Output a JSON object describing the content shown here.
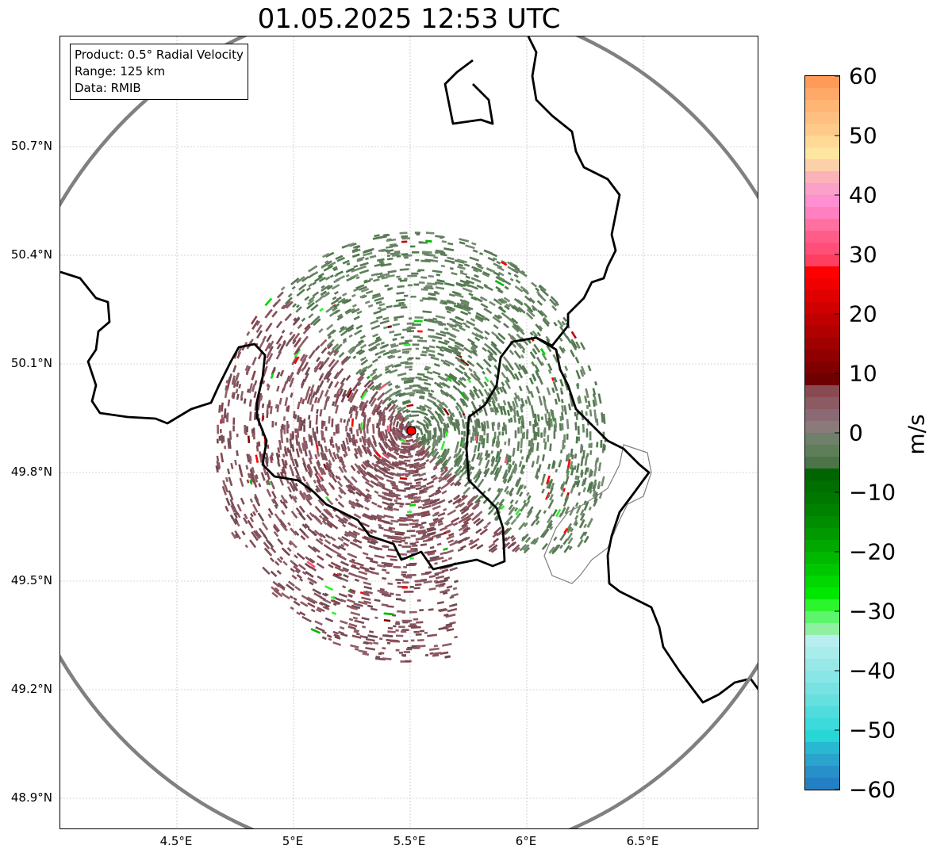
{
  "title": "01.05.2025 12:53 UTC",
  "info": {
    "product": "Product: 0.5° Radial Velocity",
    "range": "Range: 125 km",
    "source": "Data: RMIB"
  },
  "map": {
    "lon_range": [
      4.0,
      7.0
    ],
    "lat_range": [
      48.8,
      50.98
    ],
    "x_ticks": [
      {
        "value": 4.5,
        "label": "4.5°E"
      },
      {
        "value": 5.0,
        "label": "5°E"
      },
      {
        "value": 5.5,
        "label": "5.5°E"
      },
      {
        "value": 6.0,
        "label": "6°E"
      },
      {
        "value": 6.5,
        "label": "6.5°E"
      }
    ],
    "y_ticks": [
      {
        "value": 50.7,
        "label": "50.7°N"
      },
      {
        "value": 50.4,
        "label": "50.4°N"
      },
      {
        "value": 50.1,
        "label": "50.1°N"
      },
      {
        "value": 49.8,
        "label": "49.8°N"
      },
      {
        "value": 49.5,
        "label": "49.5°N"
      },
      {
        "value": 49.2,
        "label": "49.2°N"
      },
      {
        "value": 48.9,
        "label": "48.9°N"
      }
    ],
    "grid": true,
    "radar_site": {
      "lon": 5.505,
      "lat": 49.915
    },
    "range_ring_km": 125,
    "colors": {
      "border": "#000000",
      "minor_border": "#808080",
      "ring": "#808080",
      "site": "#ff0000",
      "approach": "#5e7e5a",
      "recede": "#8a5560"
    }
  },
  "colorbar": {
    "label": "m/s",
    "min": -60,
    "max": 60,
    "ticks": [
      {
        "value": 60,
        "label": "60"
      },
      {
        "value": 50,
        "label": "50"
      },
      {
        "value": 40,
        "label": "40"
      },
      {
        "value": 30,
        "label": "30"
      },
      {
        "value": 20,
        "label": "20"
      },
      {
        "value": 10,
        "label": "10"
      },
      {
        "value": 0,
        "label": "0"
      },
      {
        "value": -10,
        "label": "−10"
      },
      {
        "value": -20,
        "label": "−20"
      },
      {
        "value": -30,
        "label": "−30"
      },
      {
        "value": -40,
        "label": "−40"
      },
      {
        "value": -50,
        "label": "−50"
      },
      {
        "value": -60,
        "label": "−60"
      }
    ],
    "segments": [
      {
        "from": 58,
        "to": 60,
        "color": "#ff9a58"
      },
      {
        "from": 56,
        "to": 58,
        "color": "#ffa868"
      },
      {
        "from": 54,
        "to": 56,
        "color": "#ffb574"
      },
      {
        "from": 52,
        "to": 54,
        "color": "#ffbf80"
      },
      {
        "from": 50,
        "to": 52,
        "color": "#ffc98a"
      },
      {
        "from": 48,
        "to": 50,
        "color": "#ffd995"
      },
      {
        "from": 46,
        "to": 48,
        "color": "#ffe6a0"
      },
      {
        "from": 44,
        "to": 46,
        "color": "#fcd0a8"
      },
      {
        "from": 42,
        "to": 44,
        "color": "#fbb3b9"
      },
      {
        "from": 40,
        "to": 42,
        "color": "#fba0c8"
      },
      {
        "from": 38,
        "to": 40,
        "color": "#ff8fd0"
      },
      {
        "from": 36,
        "to": 38,
        "color": "#ff7fc0"
      },
      {
        "from": 34,
        "to": 36,
        "color": "#ff6fa0"
      },
      {
        "from": 32,
        "to": 34,
        "color": "#ff5c8a"
      },
      {
        "from": 30,
        "to": 32,
        "color": "#ff4f78"
      },
      {
        "from": 28,
        "to": 30,
        "color": "#ff3f60"
      },
      {
        "from": 26,
        "to": 28,
        "color": "#ff0000"
      },
      {
        "from": 24,
        "to": 26,
        "color": "#f00000"
      },
      {
        "from": 22,
        "to": 24,
        "color": "#e00000"
      },
      {
        "from": 20,
        "to": 22,
        "color": "#d00000"
      },
      {
        "from": 18,
        "to": 20,
        "color": "#c00000"
      },
      {
        "from": 16,
        "to": 18,
        "color": "#b00000"
      },
      {
        "from": 14,
        "to": 16,
        "color": "#a00000"
      },
      {
        "from": 12,
        "to": 14,
        "color": "#900000"
      },
      {
        "from": 10,
        "to": 12,
        "color": "#800000"
      },
      {
        "from": 8,
        "to": 10,
        "color": "#6f0000"
      },
      {
        "from": 6,
        "to": 8,
        "color": "#8a4a52"
      },
      {
        "from": 4,
        "to": 6,
        "color": "#8c5a62"
      },
      {
        "from": 2,
        "to": 4,
        "color": "#8a6a74"
      },
      {
        "from": 0,
        "to": 2,
        "color": "#8a7a7a"
      },
      {
        "from": -2,
        "to": 0,
        "color": "#6e806a"
      },
      {
        "from": -4,
        "to": -2,
        "color": "#5e7e5a"
      },
      {
        "from": -6,
        "to": -4,
        "color": "#4c7448"
      },
      {
        "from": -8,
        "to": -6,
        "color": "#006400"
      },
      {
        "from": -10,
        "to": -8,
        "color": "#006e00"
      },
      {
        "from": -12,
        "to": -10,
        "color": "#007800"
      },
      {
        "from": -14,
        "to": -12,
        "color": "#008200"
      },
      {
        "from": -16,
        "to": -14,
        "color": "#008e00"
      },
      {
        "from": -18,
        "to": -16,
        "color": "#009a00"
      },
      {
        "from": -20,
        "to": -18,
        "color": "#00a800"
      },
      {
        "from": -22,
        "to": -20,
        "color": "#00b800"
      },
      {
        "from": -24,
        "to": -22,
        "color": "#00c800"
      },
      {
        "from": -26,
        "to": -24,
        "color": "#00d800"
      },
      {
        "from": -28,
        "to": -26,
        "color": "#00e800"
      },
      {
        "from": -30,
        "to": -28,
        "color": "#2cf52c"
      },
      {
        "from": -32,
        "to": -30,
        "color": "#5cf56c"
      },
      {
        "from": -34,
        "to": -32,
        "color": "#8ef0a0"
      },
      {
        "from": -36,
        "to": -34,
        "color": "#b8eef0"
      },
      {
        "from": -38,
        "to": -36,
        "color": "#a8ecec"
      },
      {
        "from": -40,
        "to": -38,
        "color": "#98e8e8"
      },
      {
        "from": -42,
        "to": -40,
        "color": "#88e6e6"
      },
      {
        "from": -44,
        "to": -42,
        "color": "#78e2e2"
      },
      {
        "from": -46,
        "to": -44,
        "color": "#66dfdf"
      },
      {
        "from": -48,
        "to": -46,
        "color": "#50dcdc"
      },
      {
        "from": -50,
        "to": -48,
        "color": "#3cdada"
      },
      {
        "from": -52,
        "to": -50,
        "color": "#28d6d6"
      },
      {
        "from": -54,
        "to": -52,
        "color": "#28b8d0"
      },
      {
        "from": -56,
        "to": -54,
        "color": "#2aa4cc"
      },
      {
        "from": -58,
        "to": -56,
        "color": "#2890c8"
      },
      {
        "from": -60,
        "to": -58,
        "color": "#2480c4"
      }
    ]
  }
}
